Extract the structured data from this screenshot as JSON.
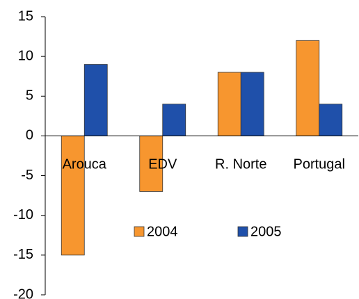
{
  "chart_data": {
    "type": "bar",
    "categories": [
      "Arouca",
      "EDV",
      "R. Norte",
      "Portugal"
    ],
    "series": [
      {
        "name": "2004",
        "color": "#f7962f",
        "values": [
          -15,
          -7,
          8,
          12
        ]
      },
      {
        "name": "2005",
        "color": "#1f50aa",
        "values": [
          9,
          4,
          8,
          4
        ]
      }
    ],
    "ylim": [
      -20,
      15
    ],
    "yticks": [
      -20,
      -15,
      -10,
      -5,
      0,
      5,
      10,
      15
    ],
    "grid": false,
    "legend": "lower center"
  }
}
